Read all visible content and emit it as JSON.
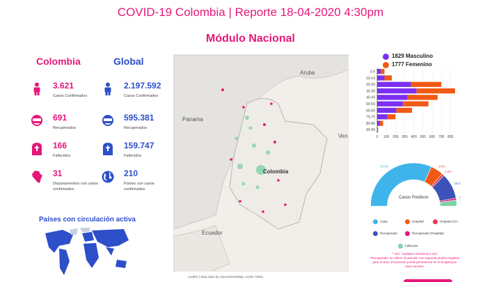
{
  "header": {
    "title": "COVID-19 Colombia | Reporte 18-04-2020 4:30pm",
    "subtitle": "Módulo Nacional"
  },
  "colombia": {
    "heading": "Colombia",
    "stats": [
      {
        "icon": "person-icon",
        "value": "3.621",
        "label": "Casos Confirmados"
      },
      {
        "icon": "recovered-face-icon",
        "value": "691",
        "label": "Recuperados"
      },
      {
        "icon": "tombstone-icon",
        "value": "166",
        "label": "Fallecidos"
      },
      {
        "icon": "colombia-map-icon",
        "value": "31",
        "label": "Departamentos con casos confirmados"
      }
    ]
  },
  "global": {
    "heading": "Global",
    "stats": [
      {
        "icon": "person-icon",
        "value": "2.197.592",
        "label": "Casos Confirmados"
      },
      {
        "icon": "recovered-face-icon",
        "value": "595.381",
        "label": "Recuperados"
      },
      {
        "icon": "tombstone-icon",
        "value": "159.747",
        "label": "Fallecidos"
      },
      {
        "icon": "globe-icon",
        "value": "210",
        "label": "Países con casos confirmados"
      }
    ]
  },
  "map": {
    "labels": [
      "Aruba",
      "Panama",
      "Colombia",
      "Ecuador",
      "Ven"
    ],
    "attribution": "Leaflet | Map data by OpenStreetMap, under ODbL."
  },
  "sex_legend": {
    "male": "1829 Masculino",
    "female": "1777 Femenino",
    "male_color": "#7b2ff0",
    "female_color": "#f05a14"
  },
  "chart_data": [
    {
      "type": "bar",
      "orientation": "horizontal",
      "categories": [
        "0-9",
        "10-19",
        "20-29",
        "30-39",
        "40-49",
        "50-59",
        "60-69",
        "70-79",
        "80-89",
        "90-99"
      ],
      "series": [
        {
          "name": "1829 Masculino",
          "values": [
            40,
            80,
            370,
            430,
            330,
            280,
            210,
            110,
            30,
            5
          ]
        },
        {
          "name": "1777 Femenino",
          "values": [
            40,
            80,
            330,
            420,
            330,
            280,
            170,
            90,
            35,
            5
          ]
        }
      ],
      "stacked": true,
      "xticks": [
        "0",
        "100",
        "200",
        "300",
        "400",
        "500",
        "600",
        "700",
        "800"
      ],
      "xlim": [
        0,
        850
      ]
    },
    {
      "type": "pie",
      "title": "Casos Positivos",
      "shape": "half-donut",
      "slices": [
        {
          "name": "Casa",
          "value": 63.5,
          "label": "63.5%"
        },
        {
          "name": "Hospital",
          "value": 9.6,
          "label": "9.6%"
        },
        {
          "name": "Hospital UCI",
          "value": 1.8,
          "label": "1.8%"
        },
        {
          "name": "Recuperado",
          "value": 19.1,
          "label": "19.1%"
        },
        {
          "name": "Recuperado (Hospital)",
          "value": 1.5,
          "label": "1.5%"
        },
        {
          "name": "Fallecido",
          "value": 4.5,
          "label": "4.5%"
        }
      ]
    }
  ],
  "pie_colors": [
    "#3fb4ea",
    "#f05a14",
    "#e63b52",
    "#3c52b8",
    "#e6177a",
    "#7fd1a8"
  ],
  "notes": {
    "line1": "* UCI: Cuidados Intensivos y UCI",
    "line2": "*Recuperado: se refiere al paciente con segunda prueba negativa para el virus. El paciente puede permanecer en el hospital por otras razones."
  },
  "world": {
    "title": "Países con circulación activa"
  }
}
